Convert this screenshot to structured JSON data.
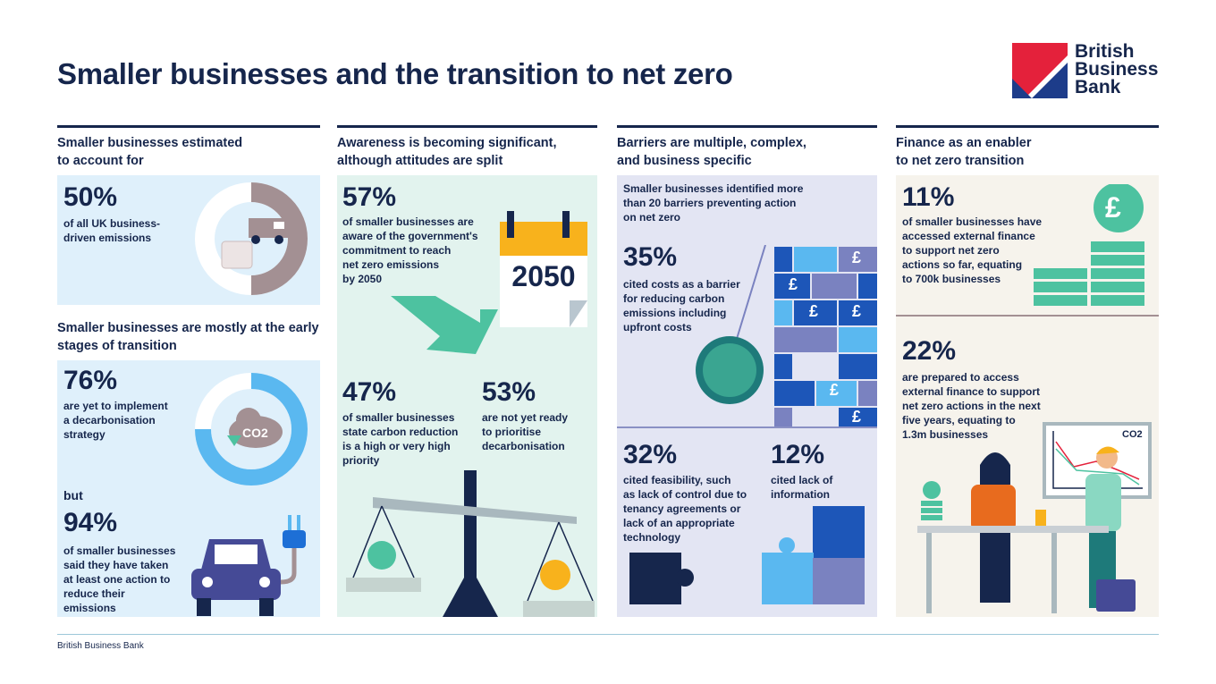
{
  "title": "Smaller businesses and the transition to net zero",
  "logo": {
    "lines": [
      "British",
      "Business",
      "Bank"
    ],
    "colors": {
      "red": "#e4213b",
      "blue": "#1d3c8a"
    }
  },
  "colors": {
    "navy": "#16264c",
    "light_blue_panel": "#dff0fb",
    "green_panel": "#e2f3ee",
    "lavender_panel": "#e3e5f3",
    "beige_panel": "#f6f3ec",
    "teal": "#4dc2a0",
    "sky": "#5ab8f0",
    "mauve": "#a39093"
  },
  "col1": {
    "header1": [
      "Smaller businesses estimated",
      "to account for"
    ],
    "stat1": {
      "value": "50%",
      "text": [
        "of all UK business-",
        "driven emissions"
      ],
      "donut_fraction": 0.5
    },
    "header2": [
      "Smaller businesses are mostly at the early",
      "stages of transition"
    ],
    "stat2": {
      "value": "76%",
      "text": [
        "are yet to implement",
        "a decarbonisation",
        "strategy"
      ],
      "donut_fraction": 0.76
    },
    "co2_label": "CO2",
    "but": "but",
    "stat3": {
      "value": "94%",
      "text": [
        "of smaller businesses",
        "said they have taken",
        "at least one action to",
        "reduce their",
        "emissions"
      ]
    }
  },
  "col2": {
    "header": [
      "Awareness is becoming significant,",
      "although attitudes are split"
    ],
    "stat1": {
      "value": "57%",
      "text": [
        "of smaller businesses are",
        "aware of the government's",
        "commitment to reach",
        "net zero emissions",
        "by 2050"
      ]
    },
    "calendar_year": "2050",
    "stat2": {
      "value": "47%",
      "text": [
        "of smaller businesses",
        "state carbon reduction",
        "is a high or very high",
        "priority"
      ]
    },
    "stat3": {
      "value": "53%",
      "text": [
        "are not yet ready",
        "to prioritise",
        "decarbonisation"
      ]
    }
  },
  "col3": {
    "header": [
      "Barriers are multiple, complex,",
      "and business specific"
    ],
    "intro": [
      "Smaller businesses identified more",
      "than 20 barriers preventing action",
      "on net zero"
    ],
    "stat1": {
      "value": "35%",
      "text": [
        "cited costs as a barrier",
        "for reducing carbon",
        "emissions including",
        "upfront costs"
      ]
    },
    "pound": "£",
    "stat2": {
      "value": "32%",
      "text": [
        "cited feasibility, such",
        "as lack of control due to",
        "tenancy agreements or",
        "lack of an appropriate",
        "technology"
      ]
    },
    "stat3": {
      "value": "12%",
      "text": [
        "cited lack of",
        "information"
      ]
    }
  },
  "col4": {
    "header": [
      "Finance as an enabler",
      "to net zero transition"
    ],
    "stat1": {
      "value": "11%",
      "text": [
        "of smaller businesses have",
        "accessed external finance",
        "to support net zero",
        "actions so far, equating",
        "to 700k businesses"
      ]
    },
    "stat2": {
      "value": "22%",
      "text": [
        "are prepared to access",
        "external finance to support",
        "net zero actions in the next",
        "five years, equating to",
        "1.3m businesses"
      ]
    },
    "chart_label": "CO2"
  },
  "footer": "British Business Bank"
}
